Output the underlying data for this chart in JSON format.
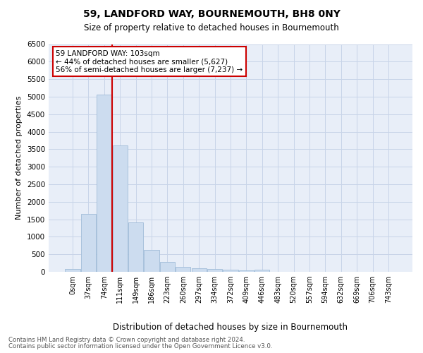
{
  "title": "59, LANDFORD WAY, BOURNEMOUTH, BH8 0NY",
  "subtitle": "Size of property relative to detached houses in Bournemouth",
  "xlabel": "Distribution of detached houses by size in Bournemouth",
  "ylabel": "Number of detached properties",
  "footer_line1": "Contains HM Land Registry data © Crown copyright and database right 2024.",
  "footer_line2": "Contains public sector information licensed under the Open Government Licence v3.0.",
  "bar_labels": [
    "0sqm",
    "37sqm",
    "74sqm",
    "111sqm",
    "149sqm",
    "186sqm",
    "223sqm",
    "260sqm",
    "297sqm",
    "334sqm",
    "372sqm",
    "409sqm",
    "446sqm",
    "483sqm",
    "520sqm",
    "557sqm",
    "594sqm",
    "632sqm",
    "669sqm",
    "706sqm",
    "743sqm"
  ],
  "bar_values": [
    75,
    1650,
    5060,
    3600,
    1420,
    615,
    290,
    150,
    105,
    75,
    55,
    35,
    55,
    0,
    0,
    0,
    0,
    0,
    0,
    0,
    0
  ],
  "bar_color": "#ccdcef",
  "bar_edgecolor": "#a0bcd8",
  "vline_color": "#cc0000",
  "annotation_box_color": "#cc0000",
  "ylim": [
    0,
    6500
  ],
  "yticks": [
    0,
    500,
    1000,
    1500,
    2000,
    2500,
    3000,
    3500,
    4000,
    4500,
    5000,
    5500,
    6000,
    6500
  ],
  "grid_color": "#c8d4e8",
  "bg_color": "#e8eef8"
}
